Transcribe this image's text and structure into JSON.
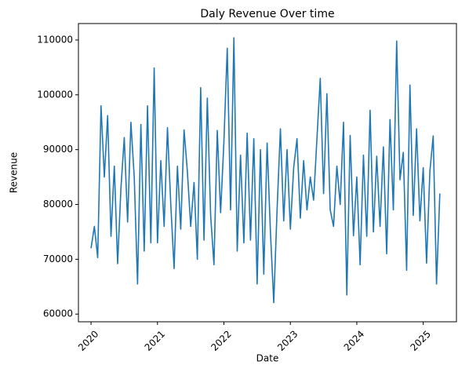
{
  "chart_data": {
    "type": "line",
    "title": "Daly Revenue Over time",
    "x_label": "Date",
    "y_label": "Revenue",
    "x": [
      2020.0,
      2020.05,
      2020.1,
      2020.15,
      2020.2,
      2020.25,
      2020.3,
      2020.35,
      2020.4,
      2020.45,
      2020.5,
      2020.55,
      2020.6,
      2020.65,
      2020.7,
      2020.75,
      2020.8,
      2020.85,
      2020.9,
      2020.95,
      2021.0,
      2021.05,
      2021.1,
      2021.15,
      2021.2,
      2021.25,
      2021.3,
      2021.35,
      2021.4,
      2021.45,
      2021.5,
      2021.55,
      2021.6,
      2021.65,
      2021.7,
      2021.75,
      2021.8,
      2021.85,
      2021.9,
      2021.95,
      2022.0,
      2022.05,
      2022.1,
      2022.15,
      2022.2,
      2022.25,
      2022.3,
      2022.35,
      2022.4,
      2022.45,
      2022.5,
      2022.55,
      2022.6,
      2022.65,
      2022.7,
      2022.75,
      2022.8,
      2022.85,
      2022.9,
      2022.95,
      2023.0,
      2023.05,
      2023.1,
      2023.15,
      2023.2,
      2023.25,
      2023.3,
      2023.35,
      2023.4,
      2023.45,
      2023.5,
      2023.55,
      2023.6,
      2023.65,
      2023.7,
      2023.75,
      2023.8,
      2023.85,
      2023.9,
      2023.95,
      2024.0,
      2024.05,
      2024.1,
      2024.15,
      2024.2,
      2024.25,
      2024.3,
      2024.35,
      2024.4,
      2024.45,
      2024.5,
      2024.55,
      2024.6,
      2024.65,
      2024.7,
      2024.75,
      2024.8,
      2024.85,
      2024.9,
      2024.95,
      2025.0,
      2025.05,
      2025.1,
      2025.15,
      2025.2,
      2025.25
    ],
    "series": [
      {
        "name": "Revenue",
        "color": "#1f77b4",
        "values": [
          72000,
          76000,
          70300,
          98000,
          85000,
          96200,
          74200,
          87000,
          69200,
          83000,
          92200,
          76800,
          95000,
          85000,
          65500,
          94600,
          71500,
          98000,
          73000,
          104900,
          73000,
          88000,
          76000,
          94000,
          80000,
          68300,
          87000,
          75500,
          93600,
          86000,
          76000,
          84000,
          70000,
          101300,
          73500,
          99400,
          78000,
          69000,
          93500,
          78500,
          91500,
          108500,
          79000,
          110400,
          71500,
          89000,
          73000,
          93000,
          73500,
          92000,
          65500,
          90000,
          67300,
          91200,
          75000,
          62100,
          79000,
          93800,
          77000,
          90000,
          75500,
          86700,
          92000,
          77500,
          88000,
          79000,
          85000,
          80800,
          92000,
          103000,
          82000,
          100200,
          79000,
          76000,
          87000,
          80000,
          95000,
          63500,
          92600,
          74300,
          85000,
          69000,
          89000,
          74200,
          97200,
          75000,
          88800,
          76000,
          90500,
          71000,
          95500,
          79000,
          109800,
          84500,
          89500,
          68000,
          101800,
          78000,
          93800,
          77000,
          86700,
          69300,
          86000,
          92500,
          65500,
          82000
        ]
      }
    ],
    "xlim": [
      2019.81,
      2025.5
    ],
    "xticks": [
      2020,
      2021,
      2022,
      2023,
      2024,
      2025
    ],
    "ylim": [
      58600,
      113000
    ],
    "yticks": [
      60000,
      70000,
      80000,
      90000,
      100000,
      110000
    ]
  }
}
